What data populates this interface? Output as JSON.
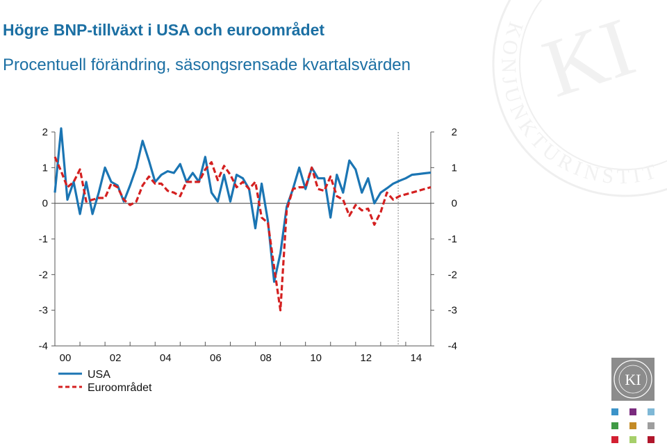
{
  "header": {
    "title": "Högre BNP-tillväxt i USA och euroområdet",
    "subtitle": "Procentuell förändring, säsongsrensade kvartalsvärden"
  },
  "chart_data": {
    "type": "line",
    "x": [
      2000.0,
      2000.25,
      2000.5,
      2000.75,
      2001.0,
      2001.25,
      2001.5,
      2001.75,
      2002.0,
      2002.25,
      2002.5,
      2002.75,
      2003.0,
      2003.25,
      2003.5,
      2003.75,
      2004.0,
      2004.25,
      2004.5,
      2004.75,
      2005.0,
      2005.25,
      2005.5,
      2005.75,
      2006.0,
      2006.25,
      2006.5,
      2006.75,
      2007.0,
      2007.25,
      2007.5,
      2007.75,
      2008.0,
      2008.25,
      2008.5,
      2008.75,
      2009.0,
      2009.25,
      2009.5,
      2009.75,
      2010.0,
      2010.25,
      2010.5,
      2010.75,
      2011.0,
      2011.25,
      2011.5,
      2011.75,
      2012.0,
      2012.25,
      2012.5,
      2012.75,
      2013.0,
      2013.25,
      2013.5,
      2013.75,
      2014.0,
      2014.25,
      2014.5,
      2014.75,
      2015.0
    ],
    "x_tick_labels": [
      "00",
      "02",
      "04",
      "06",
      "08",
      "10",
      "12",
      "14"
    ],
    "x_tick_values": [
      2000,
      2002,
      2004,
      2006,
      2008,
      2010,
      2012,
      2014
    ],
    "y_tick_labels": [
      "2",
      "1",
      "0",
      "-1",
      "-2",
      "-3",
      "-4"
    ],
    "y_tick_values": [
      2,
      1,
      0,
      -1,
      -2,
      -3,
      -4
    ],
    "ylim": [
      -4,
      2
    ],
    "grid": false,
    "legend_position": "bottom-left",
    "forecast_marker_x": 2013.7,
    "series": [
      {
        "name": "USA",
        "color": "#1b75b3",
        "style": "solid",
        "values": [
          0.3,
          2.1,
          0.1,
          0.6,
          -0.3,
          0.6,
          -0.3,
          0.3,
          1.0,
          0.6,
          0.5,
          0.05,
          0.5,
          1.0,
          1.75,
          1.2,
          0.6,
          0.8,
          0.9,
          0.85,
          1.1,
          0.6,
          0.85,
          0.6,
          1.3,
          0.3,
          0.05,
          0.8,
          0.05,
          0.8,
          0.7,
          0.4,
          -0.7,
          0.55,
          -0.5,
          -2.2,
          -1.4,
          -0.1,
          0.4,
          1.0,
          0.4,
          1.0,
          0.7,
          0.7,
          -0.4,
          0.8,
          0.3,
          1.2,
          0.95,
          0.3,
          0.7,
          0.0,
          0.3,
          0.42,
          0.55,
          0.63,
          0.7,
          0.8,
          0.82,
          0.84,
          0.86
        ]
      },
      {
        "name": "Euroområdet",
        "color": "#d42020",
        "style": "dashed",
        "values": [
          1.3,
          0.9,
          0.45,
          0.6,
          0.95,
          0.05,
          0.1,
          0.15,
          0.15,
          0.55,
          0.45,
          0.1,
          -0.05,
          0.05,
          0.5,
          0.75,
          0.55,
          0.55,
          0.35,
          0.3,
          0.2,
          0.6,
          0.6,
          0.6,
          0.95,
          1.15,
          0.65,
          1.05,
          0.8,
          0.45,
          0.6,
          0.4,
          0.6,
          -0.4,
          -0.55,
          -1.8,
          -3.0,
          -0.2,
          0.4,
          0.45,
          0.45,
          1.0,
          0.4,
          0.35,
          0.75,
          0.2,
          0.1,
          -0.35,
          -0.05,
          -0.2,
          -0.15,
          -0.6,
          -0.25,
          0.3,
          0.1,
          0.2,
          0.25,
          0.3,
          0.35,
          0.4,
          0.45
        ]
      }
    ]
  },
  "watermark": {
    "text": "KONJUNKTURINSTITUTET",
    "monogram": "KI"
  },
  "logo": {
    "text": "KI",
    "ring_text": "KONJUNKTURINSTITUTET"
  },
  "swatch_colors": [
    "#3b93c9",
    "#7a2b7e",
    "#7fb8d6",
    "#3f9a45",
    "#c48b26",
    "#9e9e9e",
    "#d32032",
    "#a6cf6a",
    "#b0162b"
  ]
}
